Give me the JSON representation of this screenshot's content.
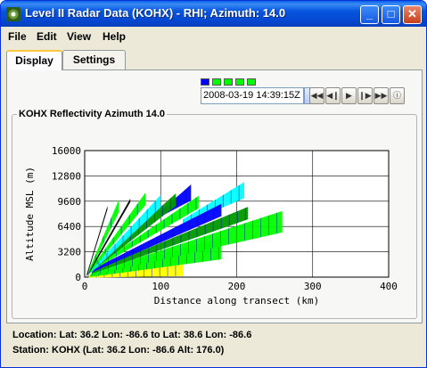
{
  "window": {
    "title": "Level II Radar Data (KOHX) - RHI; Azimuth: 14.0",
    "minimize_label": "_",
    "maximize_label": "□",
    "close_label": "✕",
    "icon": "radar-app-icon"
  },
  "menu": {
    "items": [
      {
        "label": "File"
      },
      {
        "label": "Edit"
      },
      {
        "label": "View"
      },
      {
        "label": "Help"
      }
    ]
  },
  "tabs": [
    {
      "label": "Display",
      "selected": true
    },
    {
      "label": "Settings",
      "selected": false
    }
  ],
  "animation": {
    "time_value": "2008-03-19 14:39:15Z",
    "dropdown_icon": "chevron-down-icon",
    "frame_swatch_colors": [
      "#0000ff",
      "#00ff00",
      "#00ff00",
      "#00ff00",
      "#00ff00"
    ],
    "controls": [
      {
        "name": "first-frame",
        "glyph": "◀◀"
      },
      {
        "name": "prev-frame",
        "glyph": "◀❙"
      },
      {
        "name": "play",
        "glyph": "▶"
      },
      {
        "name": "next-frame",
        "glyph": "❙▶"
      },
      {
        "name": "last-frame",
        "glyph": "▶▶"
      },
      {
        "name": "properties",
        "glyph": "ⓘ"
      }
    ]
  },
  "display": {
    "group_title": "KOHX Reflectivity Azimuth 14.0"
  },
  "chart_data": {
    "type": "scatter",
    "title": "",
    "xlabel": "Distance along transect (km)",
    "ylabel": "Altitude MSL (m)",
    "xlim": [
      0,
      400
    ],
    "ylim": [
      0,
      16000
    ],
    "x_ticks": [
      0,
      100,
      200,
      300,
      400
    ],
    "y_ticks": [
      0,
      3200,
      6400,
      9600,
      12800,
      16000
    ],
    "y_tick_labels": [
      "0",
      "3200",
      "6400",
      "9600",
      "12800",
      "16000"
    ],
    "grid": true,
    "legend": "none",
    "colors": {
      "low": "#ffff00",
      "low2": "#cccc00",
      "mid": "#00ff00",
      "mid2": "#009900",
      "high": "#0000ff",
      "high2": "#00ffff",
      "top": "#000000"
    },
    "beams": [
      {
        "elevation_note": "lowest tilt",
        "start_km": 5,
        "end_km": 130,
        "alt_start_m": 100,
        "alt_end_m": 1500,
        "color": "low"
      },
      {
        "start_km": 8,
        "end_km": 180,
        "alt_start_m": 200,
        "alt_end_m": 3600,
        "color": "mid"
      },
      {
        "start_km": 10,
        "end_km": 260,
        "alt_start_m": 400,
        "alt_end_m": 7000,
        "color": "mid"
      },
      {
        "start_km": 10,
        "end_km": 215,
        "alt_start_m": 600,
        "alt_end_m": 8100,
        "color": "mid2"
      },
      {
        "start_km": 10,
        "end_km": 180,
        "alt_start_m": 800,
        "alt_end_m": 8500,
        "color": "high"
      },
      {
        "start_km": 10,
        "end_km": 150,
        "alt_start_m": 1000,
        "alt_end_m": 9500,
        "color": "mid"
      },
      {
        "start_km": 8,
        "end_km": 120,
        "alt_start_m": 800,
        "alt_end_m": 9800,
        "color": "mid2"
      },
      {
        "start_km": 8,
        "end_km": 100,
        "alt_start_m": 700,
        "alt_end_m": 9600,
        "color": "high2"
      },
      {
        "start_km": 6,
        "end_km": 80,
        "alt_start_m": 600,
        "alt_end_m": 9900,
        "color": "mid"
      },
      {
        "start_km": 5,
        "end_km": 60,
        "alt_start_m": 500,
        "alt_end_m": 9700,
        "color": "top"
      },
      {
        "start_km": 4,
        "end_km": 45,
        "alt_start_m": 400,
        "alt_end_m": 9000,
        "color": "mid"
      },
      {
        "start_km": 3,
        "end_km": 30,
        "alt_start_m": 300,
        "alt_end_m": 8800,
        "color": "top"
      }
    ],
    "extra_bands": [
      {
        "start_km": 130,
        "end_km": 210,
        "alt_start_m": 7000,
        "alt_end_m": 11000,
        "color": "high2"
      },
      {
        "start_km": 100,
        "end_km": 140,
        "alt_start_m": 8000,
        "alt_end_m": 10700,
        "color": "high"
      }
    ]
  },
  "footer": {
    "location": "Location: Lat: 36.2 Lon: -86.6  to  Lat: 38.6 Lon: -86.6",
    "station": "Station: KOHX  (Lat: 36.2 Lon: -86.6 Alt: 176.0)"
  }
}
